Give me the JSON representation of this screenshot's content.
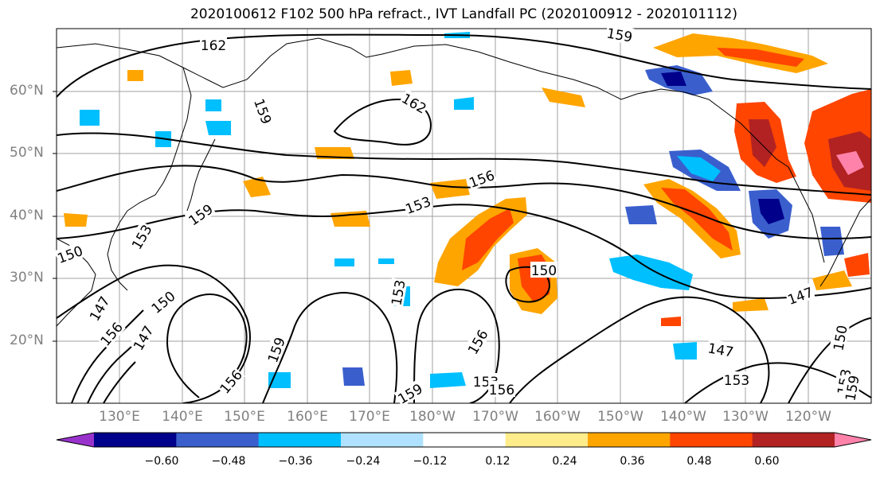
{
  "title": "2020100612 F102 500 hPa refract., IVT Landfall PC (2020100912 - 2020101112)",
  "map": {
    "lat_labels": [
      "60°N",
      "50°N",
      "40°N",
      "30°N",
      "20°N"
    ],
    "lon_labels": [
      "130°E",
      "140°E",
      "150°E",
      "160°E",
      "170°E",
      "180°W",
      "170°W",
      "160°W",
      "150°W",
      "140°W",
      "130°W",
      "120°W"
    ],
    "contour_labels": [
      "162",
      "159",
      "159",
      "162",
      "156",
      "153",
      "159",
      "153",
      "150",
      "153",
      "150",
      "147",
      "150",
      "156",
      "147",
      "156",
      "159",
      "156",
      "153",
      "159",
      "156",
      "147",
      "147",
      "153",
      "150",
      "153",
      "159"
    ]
  },
  "colorbar": {
    "ticks": [
      "−0.60",
      "−0.48",
      "−0.36",
      "−0.24",
      "−0.12",
      "0.12",
      "0.24",
      "0.36",
      "0.48",
      "0.60"
    ],
    "colors": [
      "#9932cc",
      "#00008b",
      "#3a5fcd",
      "#00bfff",
      "#b0e2ff",
      "#ffffff",
      "#ffec8b",
      "#ffa500",
      "#ff4500",
      "#b22222",
      "#ff82ab"
    ]
  },
  "colors": {
    "grid": "#a0a0a0",
    "contour": "#000000",
    "label_gray": "#808080"
  }
}
